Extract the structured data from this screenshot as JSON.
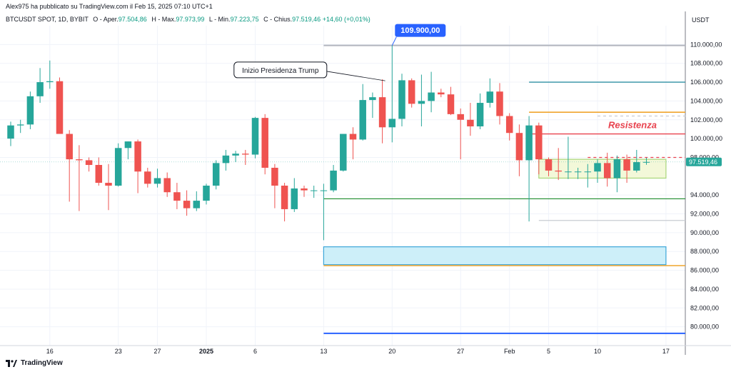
{
  "header": {
    "published_line": "Alex975 ha pubblicato su TradingView.com il Feb 15, 2025 07:10 UTC+1",
    "symbol": "BTCUSDT SPOT, 1D, BYBIT",
    "o_label": "O - Aper.",
    "o_value": "97.504,86",
    "h_label": "H - Max.",
    "h_value": "97.973,99",
    "l_label": "L - Min.",
    "l_value": "97.223,75",
    "c_label": "C - Chius.",
    "c_value": "97.519,46",
    "change": "+14,60 (+0,01%)"
  },
  "footer": {
    "brand": "TradingView",
    "logo_icon": "tradingview-logo-icon"
  },
  "colors": {
    "up": "#26a69a",
    "down": "#ef5350",
    "grid": "#f0f3fa",
    "axis_text": "#131722",
    "callout": "#2962ff",
    "price_tag": "#26a69a"
  },
  "chart_data": {
    "type": "candlestick",
    "symbol": "BTCUSDT",
    "y_axis_unit": "USDT",
    "ylim": [
      78000,
      112000
    ],
    "y_ticks": [
      {
        "v": 110000,
        "label": "110.000,00"
      },
      {
        "v": 108000,
        "label": "108.000,00"
      },
      {
        "v": 106000,
        "label": "106.000,00"
      },
      {
        "v": 104000,
        "label": "104.000,00"
      },
      {
        "v": 102000,
        "label": "102.000,00"
      },
      {
        "v": 100000,
        "label": "100.000,00"
      },
      {
        "v": 98000,
        "label": "98.000,00"
      },
      {
        "v": 94000,
        "label": "94.000,00"
      },
      {
        "v": 92000,
        "label": "92.000,00"
      },
      {
        "v": 90000,
        "label": "90.000,00"
      },
      {
        "v": 88000,
        "label": "88.000,00"
      },
      {
        "v": 86000,
        "label": "86.000,00"
      },
      {
        "v": 84000,
        "label": "84.000,00"
      },
      {
        "v": 82000,
        "label": "82.000,00"
      },
      {
        "v": 80000,
        "label": "80.000,00"
      }
    ],
    "x_ticks": [
      {
        "day": "Dec 16",
        "label": "16",
        "bold": false
      },
      {
        "day": "Dec 23",
        "label": "23",
        "bold": false
      },
      {
        "day": "Dec 27",
        "label": "27",
        "bold": false
      },
      {
        "day": "Jan 1",
        "label": "2025",
        "bold": true
      },
      {
        "day": "Jan 6",
        "label": "6",
        "bold": false
      },
      {
        "day": "Jan 13",
        "label": "13",
        "bold": false
      },
      {
        "day": "Jan 20",
        "label": "20",
        "bold": false
      },
      {
        "day": "Jan 27",
        "label": "27",
        "bold": false
      },
      {
        "day": "Feb 1",
        "label": "Feb",
        "bold": false
      },
      {
        "day": "Feb 5",
        "label": "5",
        "bold": false
      },
      {
        "day": "Feb 10",
        "label": "10",
        "bold": false
      },
      {
        "day": "Feb 17",
        "label": "17",
        "bold": false
      }
    ],
    "candles": [
      {
        "date": "Dec 12",
        "o": 100000,
        "h": 101800,
        "l": 99200,
        "c": 101400
      },
      {
        "date": "Dec 13",
        "o": 101400,
        "h": 102000,
        "l": 100600,
        "c": 101500
      },
      {
        "date": "Dec 14",
        "o": 101500,
        "h": 105000,
        "l": 101000,
        "c": 104500
      },
      {
        "date": "Dec 15",
        "o": 104500,
        "h": 107500,
        "l": 103800,
        "c": 106000
      },
      {
        "date": "Dec 16",
        "o": 106000,
        "h": 108300,
        "l": 105300,
        "c": 106100
      },
      {
        "date": "Dec 17",
        "o": 106100,
        "h": 106500,
        "l": 100500,
        "c": 100500
      },
      {
        "date": "Dec 18",
        "o": 100500,
        "h": 100900,
        "l": 93300,
        "c": 97800
      },
      {
        "date": "Dec 19",
        "o": 97800,
        "h": 99300,
        "l": 92300,
        "c": 97700
      },
      {
        "date": "Dec 20",
        "o": 97700,
        "h": 98000,
        "l": 96500,
        "c": 97200
      },
      {
        "date": "Dec 21",
        "o": 97200,
        "h": 98000,
        "l": 95000,
        "c": 95300
      },
      {
        "date": "Dec 22",
        "o": 95300,
        "h": 97300,
        "l": 92400,
        "c": 95000
      },
      {
        "date": "Dec 23",
        "o": 95000,
        "h": 99500,
        "l": 94900,
        "c": 99000
      },
      {
        "date": "Dec 24",
        "o": 99000,
        "h": 99700,
        "l": 97800,
        "c": 99700
      },
      {
        "date": "Dec 25",
        "o": 99700,
        "h": 99900,
        "l": 94200,
        "c": 96500
      },
      {
        "date": "Dec 26",
        "o": 96500,
        "h": 96900,
        "l": 94800,
        "c": 95200
      },
      {
        "date": "Dec 27",
        "o": 95200,
        "h": 96800,
        "l": 94800,
        "c": 95800
      },
      {
        "date": "Dec 28",
        "o": 95800,
        "h": 96400,
        "l": 93800,
        "c": 94300
      },
      {
        "date": "Dec 29",
        "o": 94300,
        "h": 95300,
        "l": 92500,
        "c": 93400
      },
      {
        "date": "Dec 30",
        "o": 93400,
        "h": 94500,
        "l": 91800,
        "c": 92600
      },
      {
        "date": "Dec 31",
        "o": 92600,
        "h": 94400,
        "l": 92300,
        "c": 93400
      },
      {
        "date": "Jan 1",
        "o": 93400,
        "h": 95200,
        "l": 93000,
        "c": 95000
      },
      {
        "date": "Jan 2",
        "o": 95000,
        "h": 97700,
        "l": 94600,
        "c": 97400
      },
      {
        "date": "Jan 3",
        "o": 97400,
        "h": 98800,
        "l": 96600,
        "c": 98200
      },
      {
        "date": "Jan 4",
        "o": 98200,
        "h": 98700,
        "l": 97500,
        "c": 98400
      },
      {
        "date": "Jan 5",
        "o": 98400,
        "h": 98800,
        "l": 97200,
        "c": 98300
      },
      {
        "date": "Jan 6",
        "o": 98300,
        "h": 102300,
        "l": 97900,
        "c": 102200
      },
      {
        "date": "Jan 7",
        "o": 102200,
        "h": 102600,
        "l": 96200,
        "c": 96900
      },
      {
        "date": "Jan 8",
        "o": 96900,
        "h": 97300,
        "l": 92600,
        "c": 95000
      },
      {
        "date": "Jan 9",
        "o": 95000,
        "h": 95300,
        "l": 91200,
        "c": 92500
      },
      {
        "date": "Jan 10",
        "o": 92500,
        "h": 95800,
        "l": 92200,
        "c": 94700
      },
      {
        "date": "Jan 11",
        "o": 94700,
        "h": 95000,
        "l": 93800,
        "c": 94500
      },
      {
        "date": "Jan 12",
        "o": 94500,
        "h": 95000,
        "l": 93700,
        "c": 94500
      },
      {
        "date": "Jan 13",
        "o": 94500,
        "h": 95200,
        "l": 89200,
        "c": 94500
      },
      {
        "date": "Jan 14",
        "o": 94500,
        "h": 97200,
        "l": 94300,
        "c": 96600
      },
      {
        "date": "Jan 15",
        "o": 96600,
        "h": 100500,
        "l": 96500,
        "c": 100500
      },
      {
        "date": "Jan 16",
        "o": 100500,
        "h": 101200,
        "l": 97800,
        "c": 99900
      },
      {
        "date": "Jan 17",
        "o": 99900,
        "h": 105800,
        "l": 99800,
        "c": 104100
      },
      {
        "date": "Jan 18",
        "o": 104100,
        "h": 104900,
        "l": 102200,
        "c": 104400
      },
      {
        "date": "Jan 19",
        "o": 104400,
        "h": 106300,
        "l": 99500,
        "c": 101200
      },
      {
        "date": "Jan 20",
        "o": 101200,
        "h": 109900,
        "l": 99600,
        "c": 102100
      },
      {
        "date": "Jan 21",
        "o": 102100,
        "h": 106900,
        "l": 101300,
        "c": 106200
      },
      {
        "date": "Jan 22",
        "o": 106200,
        "h": 106400,
        "l": 103300,
        "c": 103700
      },
      {
        "date": "Jan 23",
        "o": 103700,
        "h": 106800,
        "l": 101300,
        "c": 104000
      },
      {
        "date": "Jan 24",
        "o": 104000,
        "h": 107100,
        "l": 102800,
        "c": 104900
      },
      {
        "date": "Jan 25",
        "o": 104900,
        "h": 105300,
        "l": 104400,
        "c": 104700
      },
      {
        "date": "Jan 26",
        "o": 104700,
        "h": 105500,
        "l": 102500,
        "c": 102600
      },
      {
        "date": "Jan 27",
        "o": 102600,
        "h": 103200,
        "l": 97800,
        "c": 102000
      },
      {
        "date": "Jan 28",
        "o": 102000,
        "h": 103800,
        "l": 100300,
        "c": 101300
      },
      {
        "date": "Jan 29",
        "o": 101300,
        "h": 104800,
        "l": 101000,
        "c": 103800
      },
      {
        "date": "Jan 30",
        "o": 103800,
        "h": 106400,
        "l": 103300,
        "c": 105000
      },
      {
        "date": "Jan 31",
        "o": 105000,
        "h": 105900,
        "l": 101500,
        "c": 102400
      },
      {
        "date": "Feb 1",
        "o": 102400,
        "h": 102700,
        "l": 99800,
        "c": 100600
      },
      {
        "date": "Feb 2",
        "o": 100600,
        "h": 101500,
        "l": 96000,
        "c": 97700
      },
      {
        "date": "Feb 3",
        "o": 97700,
        "h": 102400,
        "l": 91200,
        "c": 101400
      },
      {
        "date": "Feb 4",
        "o": 101400,
        "h": 101700,
        "l": 96200,
        "c": 97800
      },
      {
        "date": "Feb 5",
        "o": 97800,
        "h": 98000,
        "l": 96000,
        "c": 96600
      },
      {
        "date": "Feb 6",
        "o": 96600,
        "h": 99000,
        "l": 95600,
        "c": 96500
      },
      {
        "date": "Feb 7",
        "o": 96500,
        "h": 100200,
        "l": 95700,
        "c": 96500
      },
      {
        "date": "Feb 8",
        "o": 96500,
        "h": 96900,
        "l": 95700,
        "c": 96500
      },
      {
        "date": "Feb 9",
        "o": 96500,
        "h": 97300,
        "l": 94800,
        "c": 96500
      },
      {
        "date": "Feb 10",
        "o": 96500,
        "h": 97800,
        "l": 95300,
        "c": 97400
      },
      {
        "date": "Feb 11",
        "o": 97400,
        "h": 98500,
        "l": 94900,
        "c": 95800
      },
      {
        "date": "Feb 12",
        "o": 95800,
        "h": 98200,
        "l": 94300,
        "c": 97800
      },
      {
        "date": "Feb 13",
        "o": 97800,
        "h": 98300,
        "l": 95300,
        "c": 96600
      },
      {
        "date": "Feb 14",
        "o": 96600,
        "h": 98800,
        "l": 96400,
        "c": 97500
      },
      {
        "date": "Feb 15",
        "o": 97505,
        "h": 97974,
        "l": 97224,
        "c": 97519
      }
    ],
    "horizontal_lines": [
      {
        "price": 109900,
        "color": "#b2b5be",
        "from": "Jan 13",
        "width": 2
      },
      {
        "price": 106000,
        "color": "#2e8fa3",
        "from": "Feb 3",
        "width": 1.3
      },
      {
        "price": 102800,
        "color": "#f0a52d",
        "from": "Feb 3",
        "width": 1.6
      },
      {
        "price": 100500,
        "color": "#e8424e",
        "from": "Feb 3",
        "width": 1.4
      },
      {
        "price": 93600,
        "color": "#1e8c2d",
        "from": "Jan 13",
        "width": 1.2
      },
      {
        "price": 91300,
        "color": "#c9cbd2",
        "from": "Feb 4",
        "width": 1.2
      },
      {
        "price": 86500,
        "color": "#f0a52d",
        "from": "Jan 13",
        "width": 1.6
      },
      {
        "price": 79300,
        "color": "#2962ff",
        "from": "Jan 13",
        "width": 2
      }
    ],
    "dashed_lines": [
      {
        "price": 102400,
        "color": "#c9cbd2",
        "from": "Feb 10",
        "to": "Feb 19"
      },
      {
        "price": 98000,
        "color": "#e8424e",
        "from": "Feb 9",
        "to": "Feb 19"
      }
    ],
    "zones": [
      {
        "label": "demand-zone",
        "top": 88500,
        "bottom": 86600,
        "from": "Jan 13",
        "to": "Feb 17",
        "fill": "#cdeff9",
        "stroke": "#3da7d9"
      },
      {
        "label": "consolidation-zone",
        "top": 97800,
        "bottom": 95800,
        "from": "Feb 4",
        "to": "Feb 17",
        "fill": "#f3f8d9",
        "stroke": "#a8d67a"
      }
    ],
    "annotations": [
      {
        "text": "Inizio Presidenza Trump",
        "date": "Jan 15",
        "price": 107300
      },
      {
        "text": "Resistenza",
        "date": "Feb 10",
        "price": 101100,
        "color": "#e8424e"
      },
      {
        "text": "109.900,00",
        "date": "Jan 20",
        "price": 109900,
        "type": "callout"
      }
    ],
    "last_price_label": "97.519,46",
    "last_price": 97519
  }
}
